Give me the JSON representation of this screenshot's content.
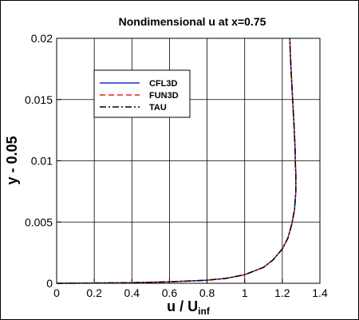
{
  "chart_data": {
    "type": "line",
    "title": "Nondimensional u at x=0.75",
    "xlabel": "u / U",
    "xlabel_sub": "inf",
    "ylabel": "y - 0.05",
    "xlim": [
      0,
      1.4
    ],
    "ylim": [
      0,
      0.02
    ],
    "x_ticks": [
      {
        "value": 0,
        "label": "0"
      },
      {
        "value": 0.2,
        "label": "0.2"
      },
      {
        "value": 0.4,
        "label": "0.4"
      },
      {
        "value": 0.6,
        "label": "0.6"
      },
      {
        "value": 0.8,
        "label": "0.8"
      },
      {
        "value": 1.0,
        "label": "1"
      },
      {
        "value": 1.2,
        "label": "1.2"
      },
      {
        "value": 1.4,
        "label": "1.4"
      }
    ],
    "y_ticks": [
      {
        "value": 0,
        "label": "0"
      },
      {
        "value": 0.005,
        "label": "0.005"
      },
      {
        "value": 0.01,
        "label": "0.01"
      },
      {
        "value": 0.015,
        "label": "0.015"
      },
      {
        "value": 0.02,
        "label": "0.02"
      }
    ],
    "grid": true,
    "legend_position": "top-left",
    "series": [
      {
        "name": "CFL3D",
        "color": "#1f2dd6",
        "dash": "solid",
        "points": [
          [
            0.0,
            0.0
          ],
          [
            0.2,
            2e-05
          ],
          [
            0.4,
            5e-05
          ],
          [
            0.6,
            0.00012
          ],
          [
            0.8,
            0.00025
          ],
          [
            0.9,
            0.0004
          ],
          [
            1.0,
            0.0007
          ],
          [
            1.1,
            0.0013
          ],
          [
            1.15,
            0.0019
          ],
          [
            1.2,
            0.0028
          ],
          [
            1.23,
            0.0037
          ],
          [
            1.25,
            0.0048
          ],
          [
            1.265,
            0.006
          ],
          [
            1.272,
            0.0075
          ],
          [
            1.272,
            0.009
          ],
          [
            1.27,
            0.0095
          ],
          [
            1.268,
            0.011
          ],
          [
            1.262,
            0.013
          ],
          [
            1.255,
            0.015
          ],
          [
            1.248,
            0.017
          ],
          [
            1.242,
            0.019
          ],
          [
            1.24,
            0.02
          ]
        ]
      },
      {
        "name": "FUN3D",
        "color": "#e8202a",
        "dash": "dashed",
        "points": [
          [
            0.0,
            0.0
          ],
          [
            0.2,
            2e-05
          ],
          [
            0.4,
            5e-05
          ],
          [
            0.6,
            0.00012
          ],
          [
            0.8,
            0.00025
          ],
          [
            0.9,
            0.0004
          ],
          [
            1.0,
            0.0007
          ],
          [
            1.1,
            0.0013
          ],
          [
            1.15,
            0.0019
          ],
          [
            1.2,
            0.0028
          ],
          [
            1.23,
            0.0037
          ],
          [
            1.25,
            0.0048
          ],
          [
            1.265,
            0.006
          ],
          [
            1.272,
            0.0075
          ],
          [
            1.272,
            0.009
          ],
          [
            1.27,
            0.0095
          ],
          [
            1.268,
            0.011
          ],
          [
            1.262,
            0.013
          ],
          [
            1.255,
            0.015
          ],
          [
            1.248,
            0.017
          ],
          [
            1.242,
            0.019
          ],
          [
            1.24,
            0.02
          ]
        ]
      },
      {
        "name": "TAU",
        "color": "#000000",
        "dash": "dashdot",
        "points": [
          [
            0.0,
            0.0
          ],
          [
            0.2,
            2e-05
          ],
          [
            0.4,
            5e-05
          ],
          [
            0.6,
            0.00012
          ],
          [
            0.8,
            0.00025
          ],
          [
            0.9,
            0.0004
          ],
          [
            1.0,
            0.0007
          ],
          [
            1.1,
            0.0013
          ],
          [
            1.15,
            0.0019
          ],
          [
            1.2,
            0.0028
          ],
          [
            1.23,
            0.0037
          ],
          [
            1.25,
            0.0048
          ],
          [
            1.265,
            0.006
          ],
          [
            1.272,
            0.0075
          ],
          [
            1.272,
            0.009
          ],
          [
            1.27,
            0.0095
          ],
          [
            1.268,
            0.011
          ],
          [
            1.262,
            0.013
          ],
          [
            1.255,
            0.015
          ],
          [
            1.248,
            0.017
          ],
          [
            1.242,
            0.019
          ],
          [
            1.24,
            0.02
          ]
        ]
      }
    ]
  }
}
